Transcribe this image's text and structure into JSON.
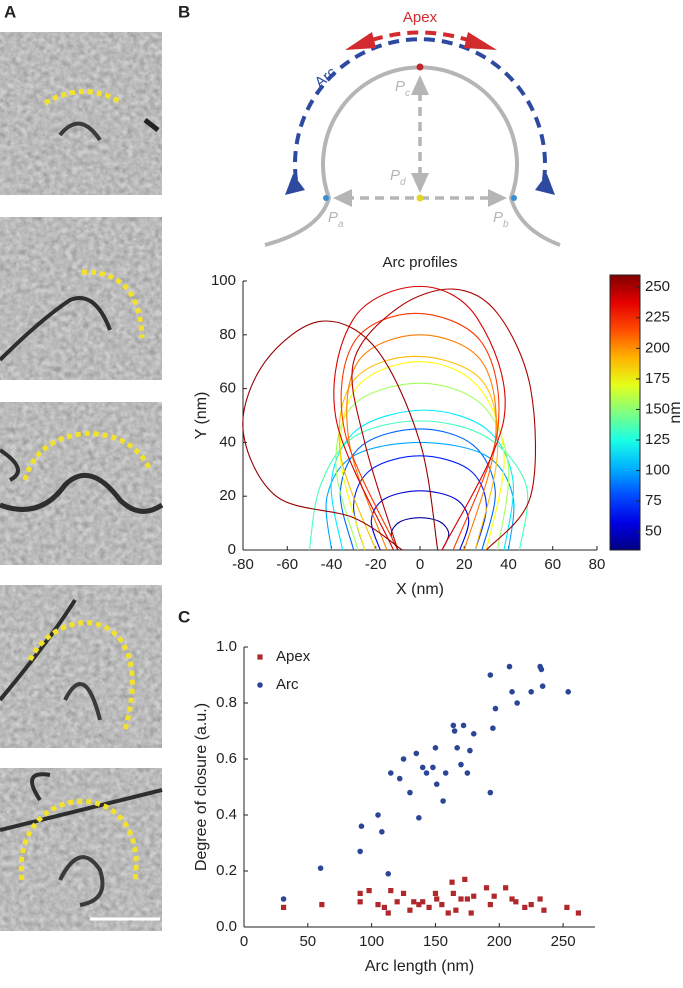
{
  "panel_labels": [
    "A",
    "B",
    "C"
  ],
  "diagram": {
    "apex": "Apex",
    "arc": "Arc",
    "points": [
      {
        "letter": "P",
        "subscript": "c"
      },
      {
        "letter": "P",
        "subscript": "d"
      },
      {
        "letter": "P",
        "subscript": "a"
      },
      {
        "letter": "P",
        "subscript": "b"
      }
    ]
  },
  "chart_data": [
    {
      "type": "line",
      "title": "Arc profiles",
      "x_label": "X (nm)",
      "y_label": "Y (nm)",
      "xlim": [
        -80,
        80
      ],
      "xticks": [
        -80,
        -60,
        -40,
        -20,
        0,
        20,
        40,
        60,
        80
      ],
      "ylim": [
        0,
        100
      ],
      "yticks": [
        0,
        20,
        40,
        60,
        80,
        100
      ],
      "colorbar": {
        "label": "nm",
        "lim": [
          35,
          260
        ],
        "ticks": [
          50,
          75,
          100,
          125,
          150,
          175,
          200,
          225,
          250
        ],
        "colormap": "jet"
      },
      "series": [
        {
          "color_value": 40,
          "x": [
            -10,
            -13,
            -9,
            0,
            9,
            13,
            10
          ],
          "y": [
            0,
            6,
            10.5,
            12,
            10.5,
            6,
            0
          ]
        },
        {
          "color_value": 55,
          "x": [
            -18,
            -22,
            -16,
            0,
            16,
            22,
            18
          ],
          "y": [
            0,
            11,
            19,
            22,
            19,
            11,
            0
          ]
        },
        {
          "color_value": 70,
          "x": [
            -25,
            -30,
            -22,
            0,
            22,
            30,
            25
          ],
          "y": [
            0,
            17,
            30,
            35,
            30,
            17,
            0
          ]
        },
        {
          "color_value": 85,
          "x": [
            -30,
            -36,
            -26,
            0,
            24,
            34,
            28
          ],
          "y": [
            0,
            22,
            39,
            45,
            39,
            22,
            0
          ]
        },
        {
          "color_value": 100,
          "x": [
            -40,
            -42,
            -30,
            0,
            30,
            42,
            40
          ],
          "y": [
            0,
            20,
            35,
            40,
            35,
            20,
            0
          ]
        },
        {
          "color_value": 115,
          "x": [
            -35,
            -40,
            -28,
            2,
            30,
            42,
            38
          ],
          "y": [
            0,
            26,
            45,
            52,
            45,
            26,
            0
          ]
        },
        {
          "color_value": 135,
          "x": [
            -50,
            -45,
            -30,
            0,
            30,
            48,
            45
          ],
          "y": [
            0,
            24,
            42,
            48,
            42,
            24,
            0
          ]
        },
        {
          "color_value": 155,
          "x": [
            -28,
            -38,
            -30,
            0,
            28,
            40,
            35
          ],
          "y": [
            0,
            31,
            54,
            62,
            54,
            31,
            0
          ]
        },
        {
          "color_value": 175,
          "x": [
            -25,
            -36,
            -28,
            0,
            26,
            38,
            30
          ],
          "y": [
            0,
            35,
            61,
            70,
            61,
            35,
            0
          ]
        },
        {
          "color_value": 190,
          "x": [
            -20,
            -36,
            -30,
            -2,
            28,
            35,
            25
          ],
          "y": [
            0,
            36,
            63,
            72,
            63,
            36,
            0
          ]
        },
        {
          "color_value": 205,
          "x": [
            -15,
            -32,
            -28,
            0,
            28,
            34,
            20
          ],
          "y": [
            0,
            40,
            70,
            80,
            70,
            40,
            0
          ]
        },
        {
          "color_value": 220,
          "x": [
            -10,
            -34,
            -30,
            -2,
            28,
            35,
            15
          ],
          "y": [
            0,
            44,
            77,
            88,
            77,
            44,
            0
          ]
        },
        {
          "color_value": 240,
          "x": [
            -12,
            -38,
            -30,
            0,
            26,
            38,
            10
          ],
          "y": [
            0,
            49,
            86,
            98,
            86,
            49,
            0
          ]
        },
        {
          "color_value": 255,
          "x": [
            -8,
            -30,
            -65,
            -80,
            -70,
            -45,
            -20,
            0,
            8
          ],
          "y": [
            0,
            12,
            20,
            45,
            70,
            85,
            75,
            40,
            0
          ]
        },
        {
          "color_value": 250,
          "x": [
            -10,
            -25,
            -30,
            -10,
            15,
            35,
            50,
            50,
            30
          ],
          "y": [
            0,
            40,
            70,
            90,
            97,
            88,
            60,
            20,
            0
          ]
        }
      ]
    },
    {
      "type": "scatter",
      "x_label": "Arc length (nm)",
      "y_label": "Degree of closure (a.u.)",
      "xlim": [
        0,
        275
      ],
      "xticks": [
        0,
        50,
        100,
        150,
        200,
        250
      ],
      "ylim": [
        0,
        1
      ],
      "yticks": [
        {
          "value": 0,
          "label": "0.0"
        },
        0.2,
        0.4,
        0.6,
        0.8,
        {
          "value": 1,
          "label": "1.0"
        }
      ],
      "legend": "upper left",
      "series": [
        {
          "name": "Apex",
          "color": "#b0282c",
          "marker": "square",
          "x": [
            31,
            61,
            91,
            91,
            98,
            105,
            110,
            113,
            115,
            120,
            125,
            130,
            133,
            137,
            140,
            145,
            150,
            151,
            155,
            160,
            163,
            164,
            166,
            170,
            173,
            175,
            178,
            180,
            190,
            193,
            196,
            205,
            210,
            213,
            220,
            225,
            232,
            235,
            253,
            262
          ],
          "y": [
            0.07,
            0.08,
            0.12,
            0.09,
            0.13,
            0.08,
            0.07,
            0.05,
            0.13,
            0.09,
            0.12,
            0.06,
            0.09,
            0.08,
            0.09,
            0.07,
            0.12,
            0.1,
            0.08,
            0.05,
            0.16,
            0.12,
            0.06,
            0.1,
            0.17,
            0.1,
            0.05,
            0.11,
            0.14,
            0.08,
            0.11,
            0.14,
            0.1,
            0.09,
            0.07,
            0.08,
            0.1,
            0.06,
            0.07,
            0.05
          ]
        },
        {
          "name": "Arc",
          "color": "#2b4597",
          "marker": "circle",
          "x": [
            31,
            60,
            91,
            92,
            105,
            108,
            113,
            115,
            122,
            125,
            130,
            135,
            137,
            140,
            143,
            148,
            150,
            151,
            156,
            158,
            164,
            165,
            167,
            170,
            172,
            175,
            177,
            180,
            193,
            193,
            195,
            197,
            208,
            210,
            214,
            225,
            232,
            233,
            234,
            254
          ],
          "y": [
            0.1,
            0.21,
            0.27,
            0.36,
            0.4,
            0.34,
            0.19,
            0.55,
            0.53,
            0.6,
            0.48,
            0.62,
            0.39,
            0.57,
            0.55,
            0.57,
            0.64,
            0.51,
            0.45,
            0.55,
            0.72,
            0.7,
            0.64,
            0.58,
            0.72,
            0.55,
            0.63,
            0.69,
            0.48,
            0.9,
            0.71,
            0.78,
            0.93,
            0.84,
            0.8,
            0.84,
            0.93,
            0.92,
            0.86,
            0.84
          ]
        }
      ]
    }
  ]
}
